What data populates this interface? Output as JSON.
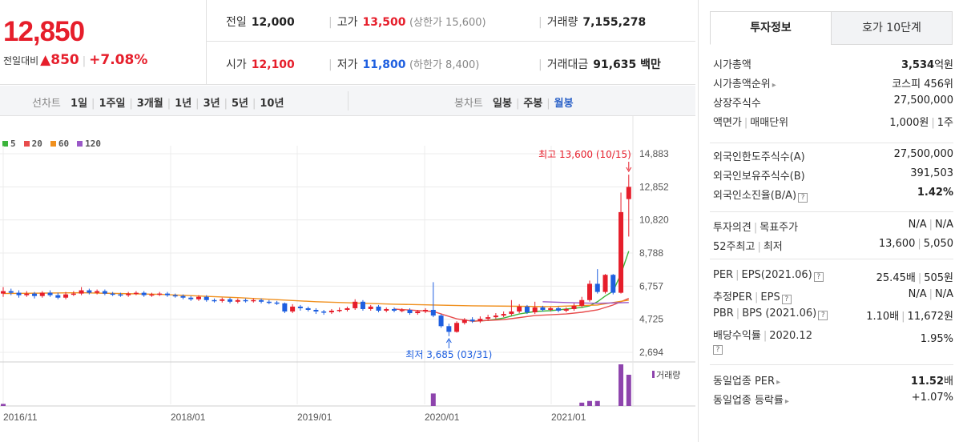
{
  "price": {
    "current": "12,850",
    "change_label": "전일대비",
    "change_arrow": "▲",
    "change_amount": "850",
    "change_pct": "+7.08%"
  },
  "stats": {
    "prev_close": {
      "label": "전일",
      "value": "12,000"
    },
    "high": {
      "label": "고가",
      "value": "13,500",
      "sub": "(상한가 15,600)"
    },
    "volume": {
      "label": "거래량",
      "value": "7,155,278"
    },
    "open": {
      "label": "시가",
      "value": "12,100"
    },
    "low": {
      "label": "저가",
      "value": "11,800",
      "sub": "(하한가 8,400)"
    },
    "amount": {
      "label": "거래대금",
      "value": "91,635 백만"
    }
  },
  "line_tabs": {
    "label": "선차트",
    "items": [
      "1일",
      "1주일",
      "3개월",
      "1년",
      "3년",
      "5년",
      "10년"
    ]
  },
  "candle_tabs": {
    "label": "봉차트",
    "items": [
      "일봉",
      "주봉",
      "월봉"
    ],
    "selected": "월봉"
  },
  "legend": [
    {
      "name": "5",
      "color": "#3cb43c"
    },
    {
      "name": "20",
      "color": "#e84c4c"
    },
    {
      "name": "60",
      "color": "#f0901e"
    },
    {
      "name": "120",
      "color": "#9b59c8"
    }
  ],
  "chart_data": {
    "type": "candlestick",
    "y_ticks": [
      "14,883",
      "12,852",
      "10,820",
      "8,788",
      "6,757",
      "4,725",
      "2,694"
    ],
    "ylim": [
      2694,
      14883
    ],
    "x_ticks": [
      "2016/11",
      "2018/01",
      "2019/01",
      "2020/01",
      "2021/01"
    ],
    "high_annotation": "최고 13,600 (10/15)",
    "low_annotation": "최저 3,685 (03/31)",
    "volume_label": "거래량",
    "candles": [
      {
        "o": 6300,
        "c": 6450,
        "h": 6700,
        "l": 6100
      },
      {
        "o": 6450,
        "c": 6350,
        "h": 6600,
        "l": 6200
      },
      {
        "o": 6350,
        "c": 6200,
        "h": 6500,
        "l": 6050
      },
      {
        "o": 6200,
        "c": 6300,
        "h": 6450,
        "l": 6100
      },
      {
        "o": 6300,
        "c": 6150,
        "h": 6400,
        "l": 6000
      },
      {
        "o": 6150,
        "c": 6350,
        "h": 6450,
        "l": 6050
      },
      {
        "o": 6350,
        "c": 6200,
        "h": 6500,
        "l": 6100
      },
      {
        "o": 6200,
        "c": 6050,
        "h": 6350,
        "l": 5950
      },
      {
        "o": 6050,
        "c": 6250,
        "h": 6400,
        "l": 5950
      },
      {
        "o": 6250,
        "c": 6300,
        "h": 6450,
        "l": 6150
      },
      {
        "o": 6300,
        "c": 6500,
        "h": 6700,
        "l": 6200
      },
      {
        "o": 6500,
        "c": 6350,
        "h": 6600,
        "l": 6250
      },
      {
        "o": 6350,
        "c": 6450,
        "h": 6550,
        "l": 6250
      },
      {
        "o": 6450,
        "c": 6300,
        "h": 6550,
        "l": 6200
      },
      {
        "o": 6300,
        "c": 6250,
        "h": 6400,
        "l": 6150
      },
      {
        "o": 6250,
        "c": 6200,
        "h": 6350,
        "l": 6100
      },
      {
        "o": 6200,
        "c": 6300,
        "h": 6400,
        "l": 6100
      },
      {
        "o": 6300,
        "c": 6350,
        "h": 6450,
        "l": 6200
      },
      {
        "o": 6350,
        "c": 6200,
        "h": 6450,
        "l": 6100
      },
      {
        "o": 6200,
        "c": 6250,
        "h": 6350,
        "l": 6100
      },
      {
        "o": 6250,
        "c": 6300,
        "h": 6400,
        "l": 6150
      },
      {
        "o": 6300,
        "c": 6200,
        "h": 6400,
        "l": 6100
      },
      {
        "o": 6200,
        "c": 6150,
        "h": 6300,
        "l": 6050
      },
      {
        "o": 6150,
        "c": 6050,
        "h": 6250,
        "l": 5950
      },
      {
        "o": 6050,
        "c": 5950,
        "h": 6150,
        "l": 5850
      },
      {
        "o": 5950,
        "c": 6100,
        "h": 6200,
        "l": 5850
      },
      {
        "o": 6100,
        "c": 5900,
        "h": 6200,
        "l": 5800
      },
      {
        "o": 5900,
        "c": 5850,
        "h": 6000,
        "l": 5750
      },
      {
        "o": 5850,
        "c": 5950,
        "h": 6050,
        "l": 5750
      },
      {
        "o": 5950,
        "c": 5800,
        "h": 6050,
        "l": 5700
      },
      {
        "o": 5800,
        "c": 5900,
        "h": 6000,
        "l": 5700
      },
      {
        "o": 5900,
        "c": 5850,
        "h": 6000,
        "l": 5750
      },
      {
        "o": 5850,
        "c": 5900,
        "h": 6000,
        "l": 5750
      },
      {
        "o": 5900,
        "c": 5800,
        "h": 6000,
        "l": 5700
      },
      {
        "o": 5800,
        "c": 5750,
        "h": 5900,
        "l": 5650
      },
      {
        "o": 5750,
        "c": 5700,
        "h": 5850,
        "l": 5600
      },
      {
        "o": 5700,
        "c": 5200,
        "h": 5750,
        "l": 5100
      },
      {
        "o": 5200,
        "c": 5500,
        "h": 5650,
        "l": 5100
      },
      {
        "o": 5500,
        "c": 5400,
        "h": 5600,
        "l": 5250
      },
      {
        "o": 5400,
        "c": 5300,
        "h": 5500,
        "l": 5200
      },
      {
        "o": 5300,
        "c": 5200,
        "h": 5400,
        "l": 5050
      },
      {
        "o": 5200,
        "c": 5150,
        "h": 5300,
        "l": 5000
      },
      {
        "o": 5150,
        "c": 5250,
        "h": 5350,
        "l": 5050
      },
      {
        "o": 5250,
        "c": 5300,
        "h": 5450,
        "l": 5150
      },
      {
        "o": 5300,
        "c": 5400,
        "h": 5500,
        "l": 5200
      },
      {
        "o": 5400,
        "c": 5800,
        "h": 5950,
        "l": 5300
      },
      {
        "o": 5800,
        "c": 5350,
        "h": 5900,
        "l": 5250
      },
      {
        "o": 5350,
        "c": 5500,
        "h": 5600,
        "l": 5250
      },
      {
        "o": 5500,
        "c": 5250,
        "h": 5600,
        "l": 5150
      },
      {
        "o": 5250,
        "c": 5350,
        "h": 5450,
        "l": 5150
      },
      {
        "o": 5350,
        "c": 5250,
        "h": 5450,
        "l": 5150
      },
      {
        "o": 5250,
        "c": 5300,
        "h": 5400,
        "l": 5150
      },
      {
        "o": 5300,
        "c": 5100,
        "h": 5400,
        "l": 5000
      },
      {
        "o": 5100,
        "c": 5200,
        "h": 5300,
        "l": 5000
      },
      {
        "o": 5200,
        "c": 5300,
        "h": 5400,
        "l": 5100
      },
      {
        "o": 5300,
        "c": 4950,
        "h": 7000,
        "l": 4850
      },
      {
        "o": 4950,
        "c": 4300,
        "h": 5050,
        "l": 4200
      },
      {
        "o": 4300,
        "c": 3950,
        "h": 4450,
        "l": 3685
      },
      {
        "o": 3950,
        "c": 4500,
        "h": 4600,
        "l": 3900
      },
      {
        "o": 4500,
        "c": 4700,
        "h": 4800,
        "l": 4400
      },
      {
        "o": 4700,
        "c": 4600,
        "h": 4850,
        "l": 4500
      },
      {
        "o": 4600,
        "c": 4750,
        "h": 4900,
        "l": 4500
      },
      {
        "o": 4750,
        "c": 4850,
        "h": 5000,
        "l": 4650
      },
      {
        "o": 4850,
        "c": 4950,
        "h": 5100,
        "l": 4750
      },
      {
        "o": 4950,
        "c": 5050,
        "h": 5200,
        "l": 4850
      },
      {
        "o": 5050,
        "c": 5200,
        "h": 5900,
        "l": 4950
      },
      {
        "o": 5200,
        "c": 5500,
        "h": 5650,
        "l": 5100
      },
      {
        "o": 5500,
        "c": 5150,
        "h": 5600,
        "l": 5050
      },
      {
        "o": 5150,
        "c": 5450,
        "h": 5800,
        "l": 5050
      },
      {
        "o": 5450,
        "c": 5300,
        "h": 5550,
        "l": 5200
      },
      {
        "o": 5300,
        "c": 5400,
        "h": 5500,
        "l": 5200
      },
      {
        "o": 5400,
        "c": 5250,
        "h": 5500,
        "l": 5150
      },
      {
        "o": 5250,
        "c": 5350,
        "h": 5450,
        "l": 5150
      },
      {
        "o": 5350,
        "c": 5550,
        "h": 5700,
        "l": 5250
      },
      {
        "o": 5550,
        "c": 5900,
        "h": 6100,
        "l": 5450
      },
      {
        "o": 5900,
        "c": 6900,
        "h": 7100,
        "l": 5800
      },
      {
        "o": 6900,
        "c": 6400,
        "h": 7800,
        "l": 6300
      },
      {
        "o": 6400,
        "c": 7450,
        "h": 7500,
        "l": 6300
      },
      {
        "o": 7450,
        "c": 6350,
        "h": 7500,
        "l": 6250
      },
      {
        "o": 6350,
        "c": 11300,
        "h": 12500,
        "l": 6300
      },
      {
        "o": 12100,
        "c": 12850,
        "h": 13600,
        "l": 9800
      }
    ],
    "volume_bars": [
      {
        "i": 0,
        "v": 0.05,
        "up": false
      },
      {
        "i": 55,
        "v": 0.3,
        "up": false
      },
      {
        "i": 74,
        "v": 0.08,
        "up": true
      },
      {
        "i": 75,
        "v": 0.12,
        "up": true
      },
      {
        "i": 76,
        "v": 0.12,
        "up": false
      },
      {
        "i": 79,
        "v": 1.0,
        "up": true
      },
      {
        "i": 80,
        "v": 0.75,
        "up": true
      }
    ],
    "ma": {
      "5": [
        [
          60,
          4600
        ],
        [
          62,
          4650
        ],
        [
          64,
          4800
        ],
        [
          66,
          5050
        ],
        [
          68,
          5200
        ],
        [
          70,
          5250
        ],
        [
          72,
          5350
        ],
        [
          74,
          5450
        ],
        [
          75,
          5550
        ],
        [
          76,
          5800
        ],
        [
          77,
          6150
        ],
        [
          78,
          6450
        ],
        [
          79,
          7500
        ],
        [
          80,
          8900
        ]
      ],
      "20": [
        [
          50,
          5350
        ],
        [
          55,
          5200
        ],
        [
          58,
          4750
        ],
        [
          60,
          4600
        ],
        [
          64,
          4700
        ],
        [
          68,
          4950
        ],
        [
          72,
          5050
        ],
        [
          74,
          5150
        ],
        [
          76,
          5300
        ],
        [
          78,
          5600
        ],
        [
          80,
          6000
        ]
      ],
      "60": [
        [
          0,
          6300
        ],
        [
          10,
          6350
        ],
        [
          20,
          6250
        ],
        [
          30,
          6050
        ],
        [
          40,
          5800
        ],
        [
          50,
          5650
        ],
        [
          60,
          5550
        ],
        [
          70,
          5500
        ],
        [
          76,
          5600
        ],
        [
          80,
          5900
        ]
      ],
      "120": [
        [
          69,
          5800
        ],
        [
          72,
          5750
        ],
        [
          76,
          5700
        ],
        [
          80,
          5750
        ]
      ]
    }
  },
  "right_panel": {
    "tabs": {
      "invest": "투자정보",
      "orderbook": "호가 10단계"
    },
    "market_cap": {
      "label": "시가총액",
      "value_num": "3,534",
      "value_unit": "억원"
    },
    "market_cap_rank": {
      "label": "시가총액순위",
      "value": "코스피 456위"
    },
    "listed_shares": {
      "label": "상장주식수",
      "value": "27,500,000"
    },
    "face_value": {
      "label_a": "액면가",
      "label_b": "매매단위",
      "value_a": "1,000원",
      "value_b": "1주"
    },
    "foreign_limit": {
      "label": "외국인한도주식수(A)",
      "value": "27,500,000"
    },
    "foreign_hold": {
      "label": "외국인보유주식수(B)",
      "value": "391,503"
    },
    "foreign_ratio": {
      "label": "외국인소진율(B/A)",
      "value": "1.42%"
    },
    "opinion": {
      "label_a": "투자의견",
      "label_b": "목표주가",
      "value_a": "N/A",
      "value_b": "N/A"
    },
    "range52": {
      "label_a": "52주최고",
      "label_b": "최저",
      "value_a": "13,600",
      "value_b": "5,050"
    },
    "per": {
      "label_a": "PER",
      "label_b": "EPS(2021.06)",
      "value_a": "25.45배",
      "value_b": "505원"
    },
    "est_per": {
      "label_a": "추정PER",
      "label_b": "EPS",
      "value_a": "N/A",
      "value_b": "N/A"
    },
    "pbr": {
      "label_a": "PBR",
      "label_b": "BPS (2021.06)",
      "value_a": "1.10배",
      "value_b": "11,672원"
    },
    "dividend": {
      "label_a": "배당수익률",
      "label_b": "2020.12",
      "value": "1.95%"
    },
    "sector_per": {
      "label": "동일업종 PER",
      "value_num": "11.52",
      "value_unit": "배"
    },
    "sector_change": {
      "label": "동일업종 등락률",
      "value": "+1.07%"
    }
  }
}
